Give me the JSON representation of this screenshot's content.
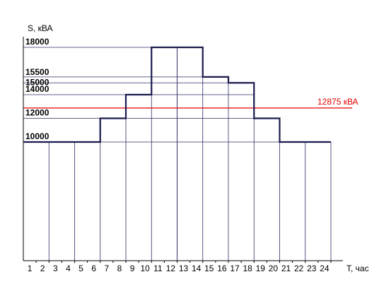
{
  "chart_data": {
    "type": "line",
    "step": true,
    "ylabel": "S, кВА",
    "xlabel": "Т, час",
    "x_ticks": [
      1,
      2,
      3,
      4,
      5,
      6,
      7,
      8,
      9,
      10,
      11,
      12,
      13,
      14,
      15,
      16,
      17,
      18,
      19,
      20,
      21,
      22,
      23,
      24
    ],
    "xlim": [
      0,
      24
    ],
    "ylim": [
      0,
      20000
    ],
    "y_level_labels": [
      "10000",
      "12000",
      "14000",
      "15000",
      "15500",
      "18000"
    ],
    "series": [
      {
        "hourly_values": [
          10000,
          10000,
          10000,
          10000,
          10000,
          10000,
          12000,
          12000,
          14000,
          14000,
          18000,
          18000,
          18000,
          18000,
          15500,
          15500,
          15000,
          15000,
          12000,
          12000,
          10000,
          10000,
          10000,
          10000
        ],
        "color": "#1a1a4e"
      }
    ],
    "reference_line": {
      "value": 12875,
      "label": "12875 кВА",
      "color": "#e60000"
    },
    "grid": true,
    "grid_color": "#2d2d66"
  }
}
